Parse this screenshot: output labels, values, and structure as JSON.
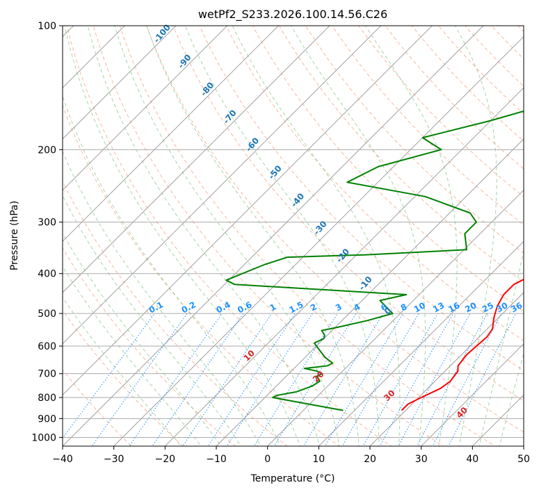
{
  "chart_data": {
    "type": "line",
    "subtype": "skew-T log-P diagram",
    "title": "wetPf2_S233.2026.100.14.56.C26",
    "xlabel": "Temperature (°C)",
    "ylabel": "Pressure (hPa)",
    "xlim": [
      -40,
      50
    ],
    "ylim": [
      1050,
      100
    ],
    "x_ticks": [
      -40,
      -30,
      -20,
      -10,
      0,
      10,
      20,
      30,
      40,
      50
    ],
    "x_tick_labels": [
      "−40",
      "−30",
      "−20",
      "−10",
      "0",
      "10",
      "20",
      "30",
      "40",
      "50"
    ],
    "y_ticks": [
      1000,
      900,
      800,
      700,
      600,
      500,
      400,
      300,
      200,
      100
    ],
    "y_tick_labels": [
      "1000",
      "900",
      "800",
      "700",
      "600",
      "500",
      "400",
      "300",
      "200",
      "100"
    ],
    "grid": true,
    "colors": {
      "temperature": "#ff0000",
      "dewpoint": "#008000",
      "isotherm": "#a0a0a0",
      "dry_adiabat": "#f4a582",
      "moist_adiabat": "#8fc98f",
      "mixing_ratio": "#1e90ff",
      "grid": "#aaaaaa",
      "dry_label": "#d62728",
      "moist_label": "#1f77b4"
    },
    "series": [
      {
        "name": "Temperature",
        "points": [
          [
            19.2,
            860
          ],
          [
            19.2,
            830
          ],
          [
            20.5,
            800
          ],
          [
            22.5,
            760
          ],
          [
            23.0,
            730
          ],
          [
            22.5,
            690
          ],
          [
            21.5,
            670
          ],
          [
            21.0,
            630
          ],
          [
            21.5,
            570
          ],
          [
            21.0,
            545
          ],
          [
            19.0,
            510
          ],
          [
            17.5,
            480
          ],
          [
            16.5,
            450
          ],
          [
            16.5,
            425
          ],
          [
            18.5,
            400
          ],
          [
            17.0,
            375
          ],
          [
            14.0,
            350
          ],
          [
            10.0,
            320
          ],
          [
            6.0,
            285
          ],
          [
            5.5,
            265
          ],
          [
            5.5,
            240
          ],
          [
            6.5,
            220
          ],
          [
            7.0,
            200
          ],
          [
            6.5,
            180
          ],
          [
            5.5,
            160
          ],
          [
            4.0,
            140
          ],
          [
            4.0,
            125
          ],
          [
            5.0,
            115
          ],
          [
            6.5,
            108
          ],
          [
            8.0,
            100
          ]
        ]
      },
      {
        "name": "Dewpoint",
        "points": [
          [
            7.8,
            860
          ],
          [
            -8.5,
            800
          ],
          [
            -8.0,
            790
          ],
          [
            -5.0,
            775
          ],
          [
            -3.0,
            750
          ],
          [
            -2.5,
            730
          ],
          [
            -4.0,
            710
          ],
          [
            -3.5,
            700
          ],
          [
            -5.0,
            690
          ],
          [
            -8.0,
            680
          ],
          [
            -4.0,
            670
          ],
          [
            -3.5,
            660
          ],
          [
            -6.0,
            640
          ],
          [
            -8.0,
            620
          ],
          [
            -10.0,
            600
          ],
          [
            -11.0,
            590
          ],
          [
            -10.0,
            575
          ],
          [
            -10.5,
            565
          ],
          [
            -12.0,
            550
          ],
          [
            -9.5,
            540
          ],
          [
            -5.0,
            520
          ],
          [
            -1.5,
            500
          ],
          [
            -6.5,
            465
          ],
          [
            -2.5,
            450
          ],
          [
            -38.0,
            425
          ],
          [
            -40.5,
            415
          ],
          [
            -38.0,
            395
          ],
          [
            -36.0,
            380
          ],
          [
            -33.0,
            365
          ],
          [
            -18.0,
            360
          ],
          [
            0.5,
            350
          ],
          [
            -3.0,
            320
          ],
          [
            -3.0,
            300
          ],
          [
            -6.0,
            285
          ],
          [
            -18.0,
            260
          ],
          [
            -36.0,
            240
          ],
          [
            -33.0,
            220
          ],
          [
            -24.0,
            200
          ],
          [
            -30.0,
            187
          ],
          [
            -20.0,
            170
          ],
          [
            -12.0,
            155
          ],
          [
            -8.0,
            135
          ],
          [
            -4.0,
            120
          ],
          [
            0.0,
            100
          ]
        ]
      }
    ],
    "mixing_ratio_labels": [
      "0.1",
      "0.2",
      "0.4",
      "0.6",
      "1",
      "1.5",
      "2",
      "3",
      "4",
      "6",
      "8",
      "10",
      "13",
      "16",
      "20",
      "25",
      "30",
      "36"
    ],
    "mixing_ratio_values": [
      0.1,
      0.2,
      0.4,
      0.6,
      1,
      1.5,
      2,
      3,
      4,
      6,
      8,
      10,
      13,
      16,
      20,
      25,
      30,
      36
    ],
    "dry_adiabat_labels": [
      "10",
      "20",
      "30",
      "40"
    ],
    "dry_adiabat_values": [
      10,
      20,
      30,
      40
    ],
    "moist_adiabat_labels": [
      "-100",
      "-90",
      "-80",
      "-70",
      "-60",
      "-50",
      "-40",
      "-30",
      "-20",
      "-10",
      "0"
    ],
    "moist_adiabat_values": [
      -100,
      -90,
      -80,
      -70,
      -60,
      -50,
      -40,
      -30,
      -20,
      -10,
      0
    ]
  }
}
